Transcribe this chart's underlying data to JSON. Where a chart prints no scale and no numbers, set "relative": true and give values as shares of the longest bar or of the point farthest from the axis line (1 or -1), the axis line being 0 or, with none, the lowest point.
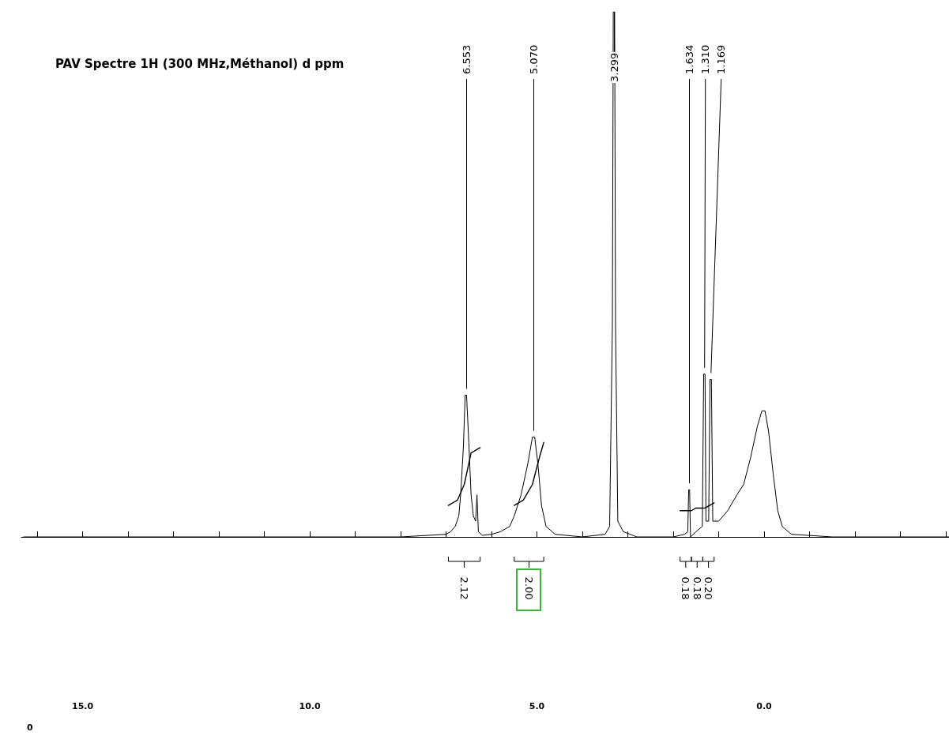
{
  "chart_data": {
    "type": "line",
    "title": "PAV Spectre 1H (300 MHz,Méthanol) d ppm",
    "relative": true,
    "grid": false,
    "marker": "none",
    "line_style": "solid",
    "xlim": [
      16.35,
      -4.07
    ],
    "xticks": [
      {
        "value": 16,
        "label": null
      },
      {
        "value": 15,
        "label": "15.0"
      },
      {
        "value": 14,
        "label": null
      },
      {
        "value": 13,
        "label": null
      },
      {
        "value": 12,
        "label": null
      },
      {
        "value": 11,
        "label": null
      },
      {
        "value": 10,
        "label": "10.0"
      },
      {
        "value": 9,
        "label": null
      },
      {
        "value": 8,
        "label": null
      },
      {
        "value": 7,
        "label": null
      },
      {
        "value": 6,
        "label": null
      },
      {
        "value": 5,
        "label": "5.0"
      },
      {
        "value": 4,
        "label": null
      },
      {
        "value": 3,
        "label": null
      },
      {
        "value": 2,
        "label": null
      },
      {
        "value": 1,
        "label": null
      },
      {
        "value": 0,
        "label": "0.0"
      },
      {
        "value": -1,
        "label": null
      },
      {
        "value": -2,
        "label": null
      },
      {
        "value": -3,
        "label": null
      },
      {
        "value": -4,
        "label": null
      }
    ],
    "series": [
      {
        "color": "#000000",
        "x": [
          16.3,
          12,
          8,
          7.0,
          6.9,
          6.8,
          6.72,
          6.68,
          6.62,
          6.58,
          6.55,
          6.5,
          6.45,
          6.4,
          6.35,
          6.32,
          6.29,
          6.2,
          6.0,
          5.8,
          5.6,
          5.5,
          5.35,
          5.2,
          5.1,
          5.05,
          4.98,
          4.9,
          4.8,
          4.6,
          4.0,
          3.5,
          3.4,
          3.34,
          3.32,
          3.29,
          3.27,
          3.22,
          3.1,
          2.8,
          2.0,
          1.75,
          1.68,
          1.66,
          1.64,
          1.62,
          1.5,
          1.36,
          1.33,
          1.3,
          1.28,
          1.22,
          1.19,
          1.16,
          1.13,
          1.0,
          0.8,
          0.6,
          0.45,
          0.3,
          0.15,
          0.05,
          -0.02,
          -0.1,
          -0.2,
          -0.3,
          -0.4,
          -0.6,
          -1.5,
          -4.07
        ],
        "values": [
          0,
          0,
          0,
          0.005,
          0.01,
          0.02,
          0.04,
          0.08,
          0.17,
          0.27,
          0.27,
          0.18,
          0.08,
          0.04,
          0.03,
          0.08,
          0.01,
          0.003,
          0.005,
          0.01,
          0.02,
          0.04,
          0.08,
          0.14,
          0.19,
          0.19,
          0.14,
          0.06,
          0.02,
          0.005,
          0,
          0.005,
          0.02,
          0.4,
          1,
          1,
          0.4,
          0.03,
          0.01,
          0,
          0,
          0.005,
          0.01,
          0.09,
          0.09,
          0,
          0.01,
          0.02,
          0.31,
          0.31,
          0.03,
          0.03,
          0.3,
          0.3,
          0.03,
          0.03,
          0.05,
          0.08,
          0.1,
          0.15,
          0.21,
          0.24,
          0.24,
          0.2,
          0.12,
          0.05,
          0.02,
          0.005,
          0,
          0
        ]
      },
      {
        "color": "#000000",
        "x": [
          6.95,
          6.75,
          6.6,
          6.45,
          6.25
        ],
        "values": [
          0.06,
          0.07,
          0.1,
          0.16,
          0.17
        ]
      },
      {
        "color": "#000000",
        "x": [
          5.5,
          5.3,
          5.1,
          4.95,
          4.85
        ],
        "values": [
          0.06,
          0.07,
          0.1,
          0.15,
          0.18
        ]
      },
      {
        "color": "#000000",
        "x": [
          1.85,
          1.75,
          1.6,
          1.5,
          1.4,
          1.3,
          1.2,
          1.1
        ],
        "values": [
          0.05,
          0.05,
          0.05,
          0.055,
          0.055,
          0.055,
          0.06,
          0.065
        ]
      }
    ],
    "annotations": [
      {
        "text": "6.553",
        "x": 6.553,
        "y": 0.27
      },
      {
        "text": "5.070",
        "x": 5.07,
        "y": 0.19
      },
      {
        "text": "3.299",
        "x": 3.3,
        "y": 1
      },
      {
        "text": "1.634",
        "x": 1.64,
        "y": 0.09
      },
      {
        "text": "1.310",
        "x": 1.31,
        "y": 0.31
      },
      {
        "text": "1.169",
        "x": 1.169,
        "y": 0.3
      },
      "2.12",
      "2.00",
      "0.18",
      "0.18",
      "0.20",
      "0"
    ]
  }
}
